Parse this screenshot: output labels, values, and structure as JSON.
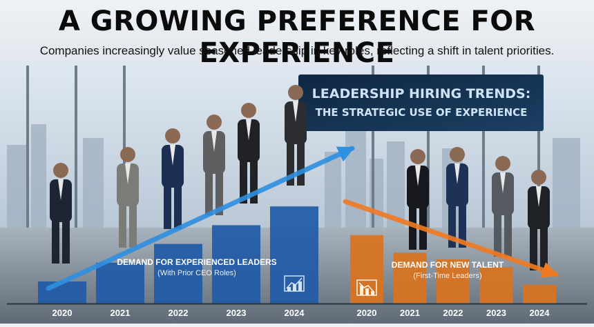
{
  "header": {
    "title": "A GROWING PREFERENCE FOR EXPERIENCE",
    "subtitle": "Companies increasingly value seasoned leadership in key roles, reflecting a shift in talent priorities."
  },
  "screen": {
    "line1": "LEADERSHIP HIRING TRENDS:",
    "line2": "THE STRATEGIC USE OF EXPERIENCE"
  },
  "chart_data": [
    {
      "type": "bar",
      "title": "",
      "categories": [
        "2020",
        "2021",
        "2022",
        "2023",
        "2024"
      ],
      "series": [
        {
          "name": "DEMAND FOR EXPERIENCED LEADERS",
          "sub_label": "(With Prior CEO Roles)",
          "values": [
            20,
            37,
            54,
            71,
            88
          ],
          "color": "#1f5aa6"
        }
      ],
      "trend": "up",
      "ylim": [
        0,
        100
      ],
      "grid": false,
      "xlabel": "",
      "ylabel": ""
    },
    {
      "type": "bar",
      "title": "",
      "categories": [
        "2020",
        "2021",
        "2022",
        "2023",
        "2024"
      ],
      "series": [
        {
          "name": "DEMAND FOR NEW TALENT",
          "sub_label": "(First-Time Leaders)",
          "values": [
            62,
            46,
            40,
            33,
            17
          ],
          "color": "#d9731f"
        }
      ],
      "trend": "down",
      "ylim": [
        0,
        100
      ],
      "grid": false,
      "xlabel": "",
      "ylabel": ""
    }
  ],
  "colors": {
    "blue": "#1f5aa6",
    "orange": "#d9731f",
    "arrow_blue": "#2f8fe0",
    "arrow_orange": "#f07a22"
  },
  "icons": [
    "chart-up-icon",
    "chart-down-icon"
  ]
}
